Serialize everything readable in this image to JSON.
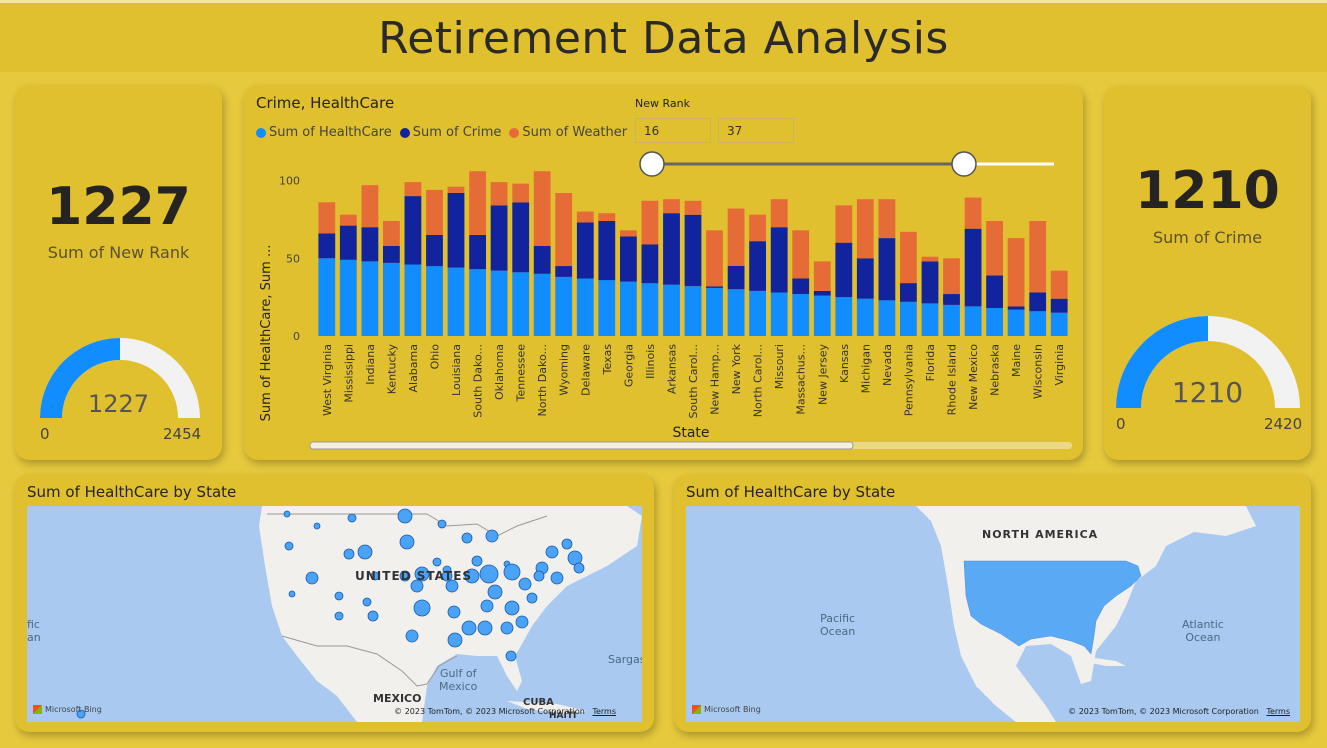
{
  "header": {
    "title": "Retirement Data Analysis"
  },
  "kpi_left": {
    "value": "1227",
    "label": "Sum of New Rank",
    "gauge_value": "1227",
    "gauge_min": "0",
    "gauge_max": "2454",
    "fraction": 0.5
  },
  "kpi_right": {
    "value": "1210",
    "label": "Sum of Crime",
    "gauge_value": "1210",
    "gauge_min": "0",
    "gauge_max": "2420",
    "fraction": 0.5
  },
  "colors": {
    "healthcare": "#118dff",
    "crime": "#12239e",
    "weather": "#e66c37",
    "gauge_fill": "#118dff",
    "gauge_bg": "#f2f2f2"
  },
  "slicer": {
    "title": "New Rank",
    "min_value": "16",
    "max_value": "37"
  },
  "chart_data": {
    "type": "bar",
    "title": "Crime, HealthCare",
    "xlabel": "State",
    "ylabel": "Sum of HealthCare, Sum ...",
    "ylim": [
      0,
      110
    ],
    "yticks": [
      "0",
      "50",
      "100"
    ],
    "stacked": true,
    "categories": [
      "West Virginia",
      "Mississippi",
      "Indiana",
      "Kentucky",
      "Alabama",
      "Ohio",
      "Louisiana",
      "South Dako...",
      "Oklahoma",
      "Tennessee",
      "North Dako...",
      "Wyoming",
      "Delaware",
      "Texas",
      "Georgia",
      "Illinois",
      "Arkansas",
      "South Carol...",
      "New Hamp...",
      "New York",
      "North Carol...",
      "Missouri",
      "Massachus...",
      "New Jersey",
      "Kansas",
      "Michigan",
      "Nevada",
      "Pennsylvania",
      "Florida",
      "Rhode Island",
      "New Mexico",
      "Nebraska",
      "Maine",
      "Wisconsin",
      "Virginia"
    ],
    "series": [
      {
        "name": "Sum of HealthCare",
        "values": [
          50,
          49,
          48,
          47,
          46,
          45,
          44,
          43,
          42,
          41,
          40,
          38,
          37,
          36,
          35,
          34,
          33,
          32,
          31,
          30,
          29,
          28,
          27,
          26,
          25,
          24,
          23,
          22,
          21,
          20,
          19,
          18,
          17,
          16,
          15
        ]
      },
      {
        "name": "Sum of Crime",
        "values": [
          16,
          22,
          22,
          11,
          44,
          20,
          48,
          22,
          42,
          45,
          18,
          7,
          36,
          38,
          29,
          25,
          46,
          46,
          1,
          15,
          32,
          42,
          10,
          3,
          35,
          26,
          40,
          12,
          27,
          7,
          50,
          21,
          2,
          12,
          9
        ]
      },
      {
        "name": "Sum of Weather",
        "values": [
          20,
          7,
          27,
          16,
          9,
          29,
          4,
          41,
          15,
          12,
          48,
          47,
          7,
          5,
          4,
          28,
          9,
          9,
          36,
          37,
          17,
          18,
          31,
          19,
          24,
          38,
          25,
          33,
          3,
          23,
          20,
          35,
          44,
          46,
          18
        ]
      }
    ],
    "legend_position": "top-left"
  },
  "map_left": {
    "title": "Sum of HealthCare by State",
    "labels": {
      "country": "UNITED STATES",
      "gulf": "Gulf of\nMexico",
      "mexico": "MEXICO",
      "cuba": "CUBA",
      "haiti": "HAITI",
      "pacific": "fic\nan",
      "sargasso": "Sargas"
    },
    "attribution": "© 2023 TomTom, © 2023 Microsoft Corporation",
    "terms": "Terms",
    "provider": "Microsoft Bing"
  },
  "map_right": {
    "title": "Sum of HealthCare by State",
    "labels": {
      "continent": "NORTH AMERICA",
      "pacific": "Pacific\nOcean",
      "atlantic": "Atlantic\nOcean"
    },
    "attribution": "© 2023 TomTom, © 2023 Microsoft Corporation",
    "terms": "Terms",
    "provider": "Microsoft Bing"
  }
}
